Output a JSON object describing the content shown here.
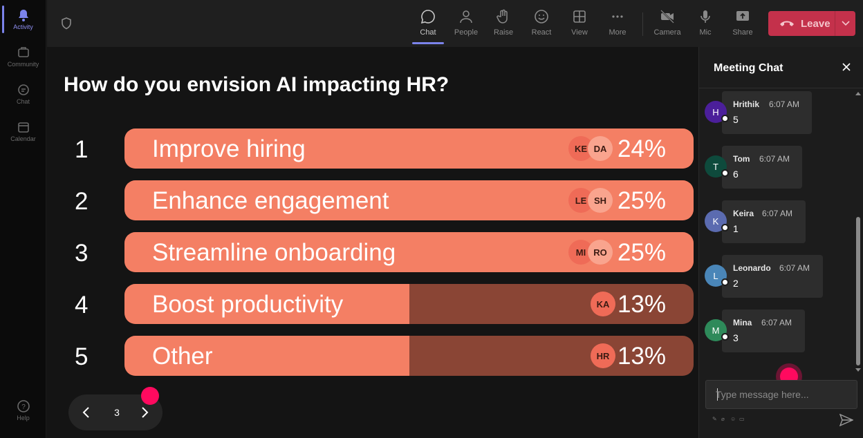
{
  "rail": {
    "items": [
      {
        "label": "Activity",
        "icon": "bell-icon",
        "active": true
      },
      {
        "label": "Community",
        "icon": "community-icon"
      },
      {
        "label": "Chat",
        "icon": "chat-icon"
      },
      {
        "label": "Calendar",
        "icon": "calendar-icon"
      }
    ],
    "help_label": "Help"
  },
  "toolbar": {
    "buttons": [
      {
        "label": "Chat",
        "icon": "chat-bubble-icon",
        "active": true
      },
      {
        "label": "People",
        "icon": "people-icon"
      },
      {
        "label": "Raise",
        "icon": "raise-hand-icon"
      },
      {
        "label": "React",
        "icon": "smiley-icon"
      },
      {
        "label": "View",
        "icon": "grid-icon"
      },
      {
        "label": "More",
        "icon": "more-dots-icon"
      },
      {
        "label": "Camera",
        "icon": "camera-off-icon"
      },
      {
        "label": "Mic",
        "icon": "mic-icon"
      },
      {
        "label": "Share",
        "icon": "share-icon"
      }
    ],
    "leave_label": "Leave"
  },
  "poll": {
    "question": "How do you envision AI impacting HR?",
    "options": [
      {
        "num": "1",
        "label": "Improve hiring",
        "percent": "24%",
        "fill": 1.0,
        "avatars": [
          "KE",
          "DA"
        ]
      },
      {
        "num": "2",
        "label": "Enhance engagement",
        "percent": "25%",
        "fill": 1.0,
        "avatars": [
          "LE",
          "SH"
        ]
      },
      {
        "num": "3",
        "label": "Streamline onboarding",
        "percent": "25%",
        "fill": 1.0,
        "avatars": [
          "MI",
          "RO"
        ]
      },
      {
        "num": "4",
        "label": "Boost productivity",
        "percent": "13%",
        "fill": 0.5,
        "avatars": [
          "KA"
        ]
      },
      {
        "num": "5",
        "label": "Other",
        "percent": "13%",
        "fill": 0.5,
        "avatars": [
          "HR"
        ]
      }
    ],
    "page": "3"
  },
  "chat": {
    "title": "Meeting Chat",
    "messages": [
      {
        "initial": "H",
        "name": "Hrithik",
        "time": "6:07 AM",
        "text": "5",
        "color": "#4b1f9a"
      },
      {
        "initial": "T",
        "name": "Tom",
        "time": "6:07 AM",
        "text": "6",
        "color": "#0e4a3c"
      },
      {
        "initial": "K",
        "name": "Keira",
        "time": "6:07 AM",
        "text": "1",
        "color": "#5b6bb0"
      },
      {
        "initial": "L",
        "name": "Leonardo",
        "time": "6:07 AM",
        "text": "2",
        "color": "#4a86b8"
      },
      {
        "initial": "M",
        "name": "Mina",
        "time": "6:07 AM",
        "text": "3",
        "color": "#2e8a5a"
      }
    ],
    "composer_placeholder": "Type message here..."
  },
  "colors": {
    "accent": "#7b83eb",
    "bar_fill": "#f47f64",
    "bar_track": "#8a4535",
    "leave": "#c4314b",
    "cursor": "#ff0a5f"
  }
}
